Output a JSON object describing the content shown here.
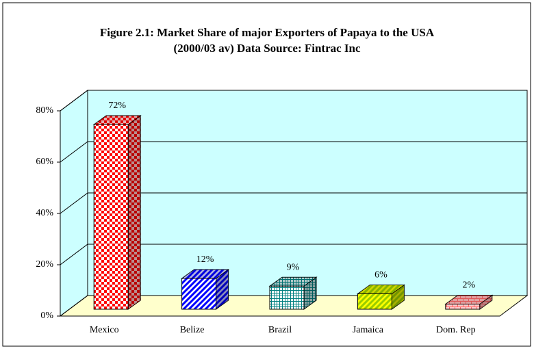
{
  "chart_data": {
    "type": "bar3d",
    "title": "Figure 2.1: Market Share of major Exporters of Papaya to the USA",
    "subtitle": "(2000/03 av) Data Source: Fintrac Inc",
    "categories": [
      "Mexico",
      "Belize",
      "Brazil",
      "Jamaica",
      "Dom. Rep"
    ],
    "values": [
      72,
      12,
      9,
      6,
      2
    ],
    "value_labels": [
      "72%",
      "12%",
      "9%",
      "6%",
      "2%"
    ],
    "colors": [
      "#ff0000",
      "#0000ff",
      "#008080",
      "#99cc00",
      "#ff6666"
    ],
    "ylim": [
      0,
      80
    ],
    "yticks": [
      {
        "value": 0,
        "label": "0%"
      },
      {
        "value": 20,
        "label": "20%"
      },
      {
        "value": 40,
        "label": "40%"
      },
      {
        "value": 60,
        "label": "60%"
      },
      {
        "value": 80,
        "label": "80%"
      }
    ],
    "grid": true
  }
}
